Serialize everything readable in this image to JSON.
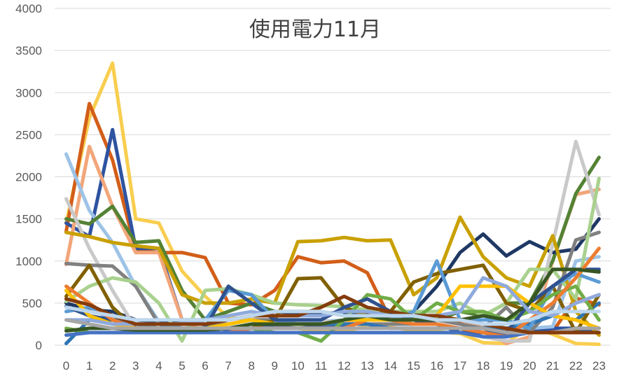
{
  "chart_data": {
    "type": "line",
    "title": "使用電力11月",
    "xlabel": "",
    "ylabel": "",
    "categories": [
      "0",
      "1",
      "2",
      "3",
      "4",
      "5",
      "6",
      "7",
      "8",
      "9",
      "10",
      "11",
      "12",
      "13",
      "14",
      "15",
      "16",
      "17",
      "18",
      "19",
      "20",
      "21",
      "22",
      "23"
    ],
    "ylim": [
      0,
      4000
    ],
    "yticks": [
      "0",
      "500",
      "1000",
      "1500",
      "2000",
      "2500",
      "3000",
      "3500",
      "4000"
    ],
    "grid": true,
    "legend": "none",
    "series": [
      {
        "color": "#F9CE4F",
        "values": [
          1450,
          2700,
          3350,
          1500,
          1450,
          880,
          580,
          330,
          300,
          200,
          200,
          160,
          170,
          220,
          210,
          180,
          160,
          140,
          30,
          20,
          230,
          130,
          20,
          10
        ]
      },
      {
        "color": "#D35E18",
        "values": [
          1350,
          2870,
          2200,
          1130,
          1100,
          1100,
          1040,
          500,
          480,
          650,
          1050,
          980,
          1000,
          860,
          300,
          300,
          300,
          260,
          200,
          180,
          180,
          160,
          560,
          480
        ]
      },
      {
        "color": "#2E53A1",
        "values": [
          1450,
          1290,
          2560,
          1150,
          1150,
          300,
          240,
          180,
          200,
          220,
          200,
          220,
          240,
          300,
          350,
          300,
          250,
          200,
          150,
          140,
          150,
          200,
          200,
          150
        ]
      },
      {
        "color": "#F2A67A",
        "values": [
          960,
          2360,
          1650,
          1100,
          1100,
          300,
          150,
          250,
          300,
          250,
          250,
          250,
          250,
          300,
          300,
          300,
          300,
          300,
          200,
          20,
          100,
          1000,
          1790,
          1850
        ]
      },
      {
        "color": "#9DC3E6",
        "values": [
          2270,
          1600,
          1220,
          700,
          280,
          260,
          250,
          250,
          300,
          300,
          280,
          280,
          300,
          320,
          300,
          300,
          300,
          300,
          250,
          200,
          200,
          220,
          1000,
          1050
        ]
      },
      {
        "color": "#548235",
        "values": [
          1500,
          1440,
          1650,
          1220,
          1240,
          650,
          300,
          400,
          500,
          400,
          400,
          400,
          350,
          350,
          400,
          400,
          300,
          400,
          350,
          500,
          500,
          1000,
          1800,
          2230
        ]
      },
      {
        "color": "#1F3864",
        "values": [
          500,
          420,
          400,
          300,
          280,
          300,
          300,
          300,
          350,
          400,
          380,
          380,
          380,
          380,
          380,
          400,
          700,
          1100,
          1320,
          1060,
          1230,
          1100,
          1140,
          1500
        ]
      },
      {
        "color": "#C9C9C9",
        "values": [
          1740,
          1150,
          650,
          200,
          150,
          150,
          200,
          250,
          300,
          250,
          300,
          300,
          250,
          250,
          250,
          250,
          250,
          200,
          100,
          50,
          50,
          1200,
          2420,
          1550
        ]
      },
      {
        "color": "#C9A000",
        "values": [
          1340,
          1290,
          1220,
          1180,
          1150,
          600,
          500,
          500,
          550,
          500,
          1230,
          1240,
          1280,
          1240,
          1250,
          600,
          800,
          1520,
          1050,
          800,
          700,
          1300,
          400,
          120
        ]
      },
      {
        "color": "#808080",
        "values": [
          970,
          950,
          940,
          700,
          250,
          250,
          250,
          250,
          300,
          300,
          250,
          250,
          250,
          250,
          250,
          250,
          300,
          250,
          200,
          450,
          150,
          450,
          1250,
          1340
        ]
      },
      {
        "color": "#A9D18E",
        "values": [
          520,
          700,
          800,
          750,
          500,
          50,
          650,
          670,
          600,
          500,
          480,
          470,
          460,
          420,
          400,
          400,
          400,
          500,
          350,
          500,
          900,
          900,
          550,
          1980
        ]
      },
      {
        "color": "#2F75B5",
        "values": [
          20,
          300,
          300,
          250,
          250,
          200,
          200,
          200,
          250,
          250,
          250,
          250,
          250,
          250,
          200,
          200,
          200,
          200,
          200,
          200,
          250,
          350,
          300,
          500
        ]
      },
      {
        "color": "#806000",
        "values": [
          580,
          950,
          450,
          200,
          150,
          150,
          150,
          150,
          200,
          300,
          790,
          800,
          450,
          350,
          400,
          750,
          850,
          900,
          950,
          500,
          400,
          700,
          150,
          600
        ]
      },
      {
        "color": "#5B9BD5",
        "values": [
          400,
          450,
          300,
          250,
          200,
          250,
          300,
          650,
          600,
          300,
          250,
          250,
          300,
          350,
          300,
          400,
          1000,
          300,
          300,
          300,
          200,
          700,
          850,
          750
        ]
      },
      {
        "color": "#70AD47",
        "values": [
          200,
          150,
          150,
          150,
          150,
          150,
          150,
          150,
          200,
          150,
          150,
          50,
          300,
          600,
          550,
          300,
          500,
          400,
          400,
          300,
          400,
          600,
          700,
          300
        ]
      },
      {
        "color": "#2F528F",
        "values": [
          460,
          350,
          300,
          200,
          200,
          200,
          200,
          700,
          500,
          300,
          300,
          300,
          450,
          550,
          400,
          300,
          250,
          150,
          150,
          150,
          500,
          700,
          900,
          900
        ]
      },
      {
        "color": "#ED7D31",
        "values": [
          700,
          500,
          300,
          200,
          200,
          150,
          150,
          150,
          200,
          200,
          200,
          200,
          200,
          300,
          300,
          250,
          250,
          200,
          150,
          100,
          300,
          500,
          800,
          1150
        ]
      },
      {
        "color": "#4472C4",
        "values": [
          120,
          150,
          150,
          150,
          150,
          150,
          150,
          150,
          150,
          150,
          150,
          150,
          150,
          150,
          150,
          150,
          150,
          150,
          100,
          100,
          150,
          150,
          200,
          200
        ]
      },
      {
        "color": "#FFC000",
        "values": [
          650,
          350,
          250,
          200,
          200,
          200,
          200,
          250,
          300,
          250,
          250,
          250,
          300,
          300,
          300,
          300,
          350,
          700,
          700,
          700,
          500,
          350,
          300,
          200
        ]
      },
      {
        "color": "#375623",
        "values": [
          170,
          200,
          200,
          180,
          180,
          180,
          180,
          200,
          250,
          250,
          250,
          250,
          300,
          350,
          300,
          300,
          300,
          300,
          350,
          300,
          500,
          900,
          900,
          870
        ]
      },
      {
        "color": "#8FAADC",
        "values": [
          300,
          300,
          250,
          250,
          250,
          250,
          300,
          350,
          400,
          350,
          350,
          350,
          400,
          400,
          350,
          350,
          350,
          400,
          800,
          700,
          400,
          350,
          500,
          600
        ]
      },
      {
        "color": "#A6A6A6",
        "values": [
          300,
          250,
          200,
          200,
          200,
          200,
          200,
          200,
          200,
          200,
          200,
          200,
          200,
          200,
          200,
          200,
          200,
          200,
          200,
          150,
          150,
          150,
          200,
          200
        ]
      },
      {
        "color": "#843C0C",
        "values": [
          550,
          480,
          350,
          250,
          250,
          250,
          250,
          300,
          350,
          350,
          350,
          450,
          580,
          450,
          400,
          350,
          350,
          300,
          250,
          200,
          150,
          150,
          150,
          150
        ]
      },
      {
        "color": "#BDD7EE",
        "values": [
          450,
          400,
          350,
          300,
          300,
          300,
          300,
          300,
          350,
          400,
          400,
          400,
          350,
          350,
          350,
          350,
          300,
          300,
          250,
          250,
          300,
          400,
          400,
          400
        ]
      }
    ]
  }
}
